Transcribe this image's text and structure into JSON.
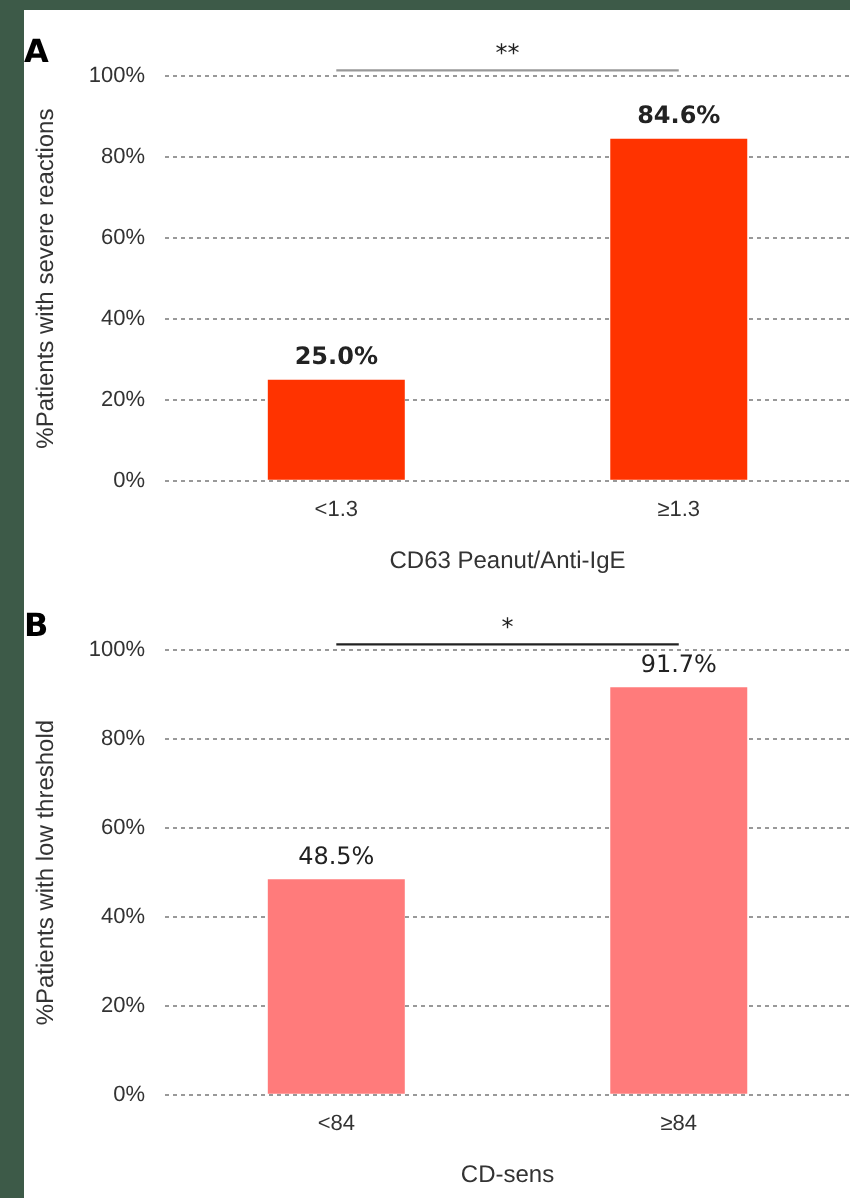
{
  "chart_data": [
    {
      "type": "bar",
      "title": "A",
      "xlabel": "CD63 Peanut/Anti-IgE",
      "ylabel": "%Patients with severe reactions",
      "categories": [
        "<1.3",
        "≥1.3"
      ],
      "values": [
        25.0,
        84.6
      ],
      "value_labels": [
        "25.0%",
        "84.6%"
      ],
      "color": "#ff3300",
      "ylim": [
        0,
        100
      ],
      "yticks": [
        {
          "value": 0,
          "label": "0%"
        },
        {
          "value": 20,
          "label": "20%"
        },
        {
          "value": 40,
          "label": "40%"
        },
        {
          "value": 60,
          "label": "60%"
        },
        {
          "value": 80,
          "label": "80%"
        },
        {
          "value": 100,
          "label": "100%"
        }
      ],
      "grid": "y",
      "annotations": [
        "**"
      ]
    },
    {
      "type": "bar",
      "title": "B",
      "xlabel": "CD-sens",
      "ylabel": "%Patients with low threshold",
      "categories": [
        "<84",
        "≥84"
      ],
      "values": [
        48.5,
        91.7
      ],
      "value_labels": [
        "48.5%",
        "91.7%"
      ],
      "color": "#ff7b7b",
      "ylim": [
        0,
        100
      ],
      "yticks": [
        {
          "value": 0,
          "label": "0%"
        },
        {
          "value": 20,
          "label": "20%"
        },
        {
          "value": 40,
          "label": "40%"
        },
        {
          "value": 60,
          "label": "60%"
        },
        {
          "value": 80,
          "label": "80%"
        },
        {
          "value": 100,
          "label": "100%"
        }
      ],
      "grid": "y",
      "annotations": [
        "*"
      ]
    }
  ]
}
